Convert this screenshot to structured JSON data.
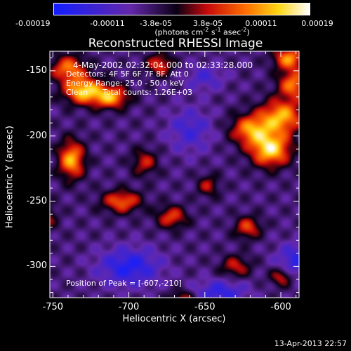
{
  "colorbar": {
    "tick_labels": [
      "-0.00019",
      "-0.00011",
      "-3.8e-05",
      "3.8e-05",
      "0.00011",
      "0.00019"
    ],
    "units_main": "(photons cm",
    "units_exp1": "-2",
    "units_s": " s",
    "units_exp2": "-1",
    "units_asec": " asec",
    "units_exp3": "-2",
    "units_close": ")",
    "range": [
      -0.00019,
      0.00019
    ]
  },
  "plot": {
    "title": "Reconstructed RHESSI Image",
    "info_time": "4-May-2002 02:32:04.000 to 02:33:28.000",
    "info_detectors": "Detectors: 4F 5F 6F 7F 8F, Att 0",
    "info_energy": "Energy Range: 25.0 - 50.0 keV",
    "info_clean": "Clean      Total counts: 1.26E+03",
    "peak_position": "Position of Peak = [-607,-210]"
  },
  "chart_data": {
    "type": "heatmap",
    "title": "Reconstructed RHESSI Image",
    "xlabel": "Heliocentric X (arcsec)",
    "ylabel": "Heliocentric Y (arcsec)",
    "xlim": [
      -752,
      -588
    ],
    "ylim": [
      -324,
      -135
    ],
    "x_ticks": [
      -750,
      -700,
      -650,
      -600
    ],
    "x_tick_labels": [
      "-750",
      "-700",
      "-650",
      "-600"
    ],
    "y_ticks": [
      -150,
      -200,
      -250,
      -300
    ],
    "y_tick_labels": [
      "-150",
      "-200",
      "-250",
      "-300"
    ],
    "colorscale": "blue-purple-black-red-yellow-white",
    "sources": [
      {
        "x": -607,
        "y": -210,
        "amp": 1.0,
        "sx": 9,
        "sy": 9
      },
      {
        "x": -600,
        "y": -185,
        "amp": 0.85,
        "sx": 10,
        "sy": 9
      },
      {
        "x": -620,
        "y": -195,
        "amp": 0.75,
        "sx": 9,
        "sy": 8
      },
      {
        "x": -592,
        "y": -160,
        "amp": 0.7,
        "sx": 7,
        "sy": 8
      },
      {
        "x": -595,
        "y": -140,
        "amp": 0.75,
        "sx": 7,
        "sy": 6
      },
      {
        "x": -730,
        "y": -165,
        "amp": 0.95,
        "sx": 9,
        "sy": 7
      },
      {
        "x": -712,
        "y": -170,
        "amp": 0.8,
        "sx": 8,
        "sy": 6
      },
      {
        "x": -740,
        "y": -148,
        "amp": 0.7,
        "sx": 8,
        "sy": 7
      },
      {
        "x": -680,
        "y": -145,
        "amp": 0.55,
        "sx": 6,
        "sy": 6
      },
      {
        "x": -738,
        "y": -218,
        "amp": 0.85,
        "sx": 6,
        "sy": 10
      },
      {
        "x": -690,
        "y": -220,
        "amp": 0.45,
        "sx": 6,
        "sy": 7
      },
      {
        "x": -705,
        "y": -250,
        "amp": 0.65,
        "sx": 9,
        "sy": 6
      },
      {
        "x": -672,
        "y": -262,
        "amp": 0.55,
        "sx": 7,
        "sy": 6
      },
      {
        "x": -648,
        "y": -238,
        "amp": 0.4,
        "sx": 5,
        "sy": 6
      },
      {
        "x": -622,
        "y": -270,
        "amp": 0.55,
        "sx": 6,
        "sy": 6
      },
      {
        "x": -630,
        "y": -300,
        "amp": 0.45,
        "sx": 7,
        "sy": 6
      },
      {
        "x": -600,
        "y": -308,
        "amp": 0.5,
        "sx": 5,
        "sy": 5
      },
      {
        "x": -755,
        "y": -262,
        "amp": 0.4,
        "sx": 5,
        "sy": 7
      },
      {
        "x": -665,
        "y": -325,
        "amp": 0.45,
        "sx": 6,
        "sy": 5
      },
      {
        "x": -700,
        "y": -300,
        "amp": -0.55,
        "sx": 14,
        "sy": 10
      },
      {
        "x": -640,
        "y": -320,
        "amp": -0.45,
        "sx": 12,
        "sy": 7
      },
      {
        "x": -590,
        "y": -295,
        "amp": -0.45,
        "sx": 9,
        "sy": 9
      },
      {
        "x": -660,
        "y": -195,
        "amp": -0.35,
        "sx": 10,
        "sy": 12
      },
      {
        "x": -650,
        "y": -155,
        "amp": -0.3,
        "sx": 9,
        "sy": 7
      }
    ]
  },
  "datestamp": "13-Apr-2013 22:57"
}
